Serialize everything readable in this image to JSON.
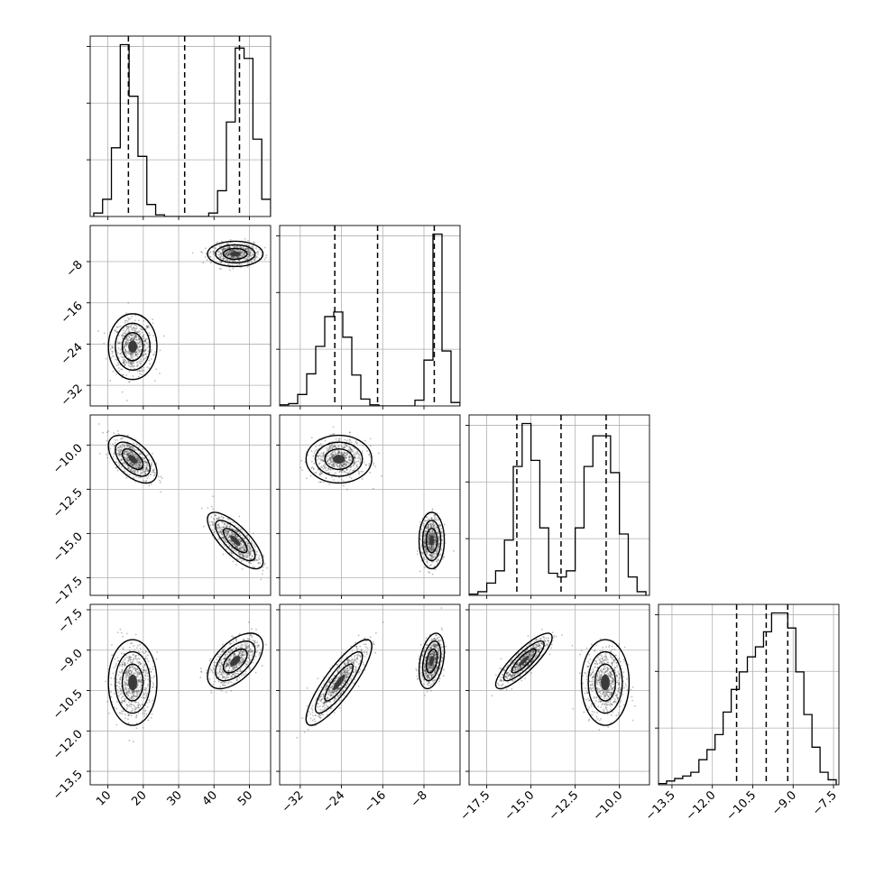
{
  "chart_data": {
    "type": "corner",
    "grid_lines": true,
    "params": [
      {
        "ticks": [
          10,
          20,
          30,
          40,
          50
        ],
        "tick_labels": [
          "10",
          "20",
          "30",
          "40",
          "50"
        ],
        "range": [
          5,
          56
        ],
        "quantiles": [
          15.8,
          31.7,
          47.2
        ],
        "hist": {
          "edges": [
            6,
            8.5,
            11,
            13.5,
            16,
            18.5,
            21,
            23.5,
            26,
            28.5,
            31,
            33.5,
            36,
            38.5,
            41,
            43.5,
            46,
            48.5,
            51,
            53.5,
            56
          ],
          "counts": [
            2,
            10,
            40,
            100,
            70,
            35,
            7,
            1,
            0,
            0,
            0,
            0,
            0,
            2,
            15,
            55,
            98,
            92,
            45,
            10
          ]
        }
      },
      {
        "ticks": [
          -32,
          -24,
          -16,
          -8
        ],
        "tick_labels": [
          "−32",
          "−24",
          "−16",
          "−8"
        ],
        "range": [
          -36,
          -1
        ],
        "quantiles": [
          -25.3,
          -17.0,
          -6.0
        ],
        "hist": {
          "edges": [
            -36,
            -34.25,
            -32.5,
            -30.75,
            -29,
            -27.25,
            -25.5,
            -23.75,
            -22,
            -20.25,
            -18.5,
            -16.75,
            -15,
            -13.25,
            -11.5,
            -9.75,
            -8,
            -6.25,
            -4.5,
            -2.75,
            -1
          ],
          "counts": [
            1,
            2,
            10,
            28,
            52,
            78,
            82,
            60,
            27,
            6,
            1,
            0,
            0,
            0,
            0,
            5,
            40,
            150,
            48,
            3
          ]
        }
      },
      {
        "ticks": [
          -17.5,
          -15.0,
          -12.5,
          -10.0
        ],
        "tick_labels": [
          "−17.5",
          "−15.0",
          "−12.5",
          "−10.0"
        ],
        "range": [
          -18.5,
          -8.3
        ],
        "quantiles": [
          -15.8,
          -13.3,
          -10.75
        ],
        "hist": {
          "edges": [
            -18.5,
            -18.0,
            -17.5,
            -17.0,
            -16.5,
            -16.0,
            -15.5,
            -15.0,
            -14.5,
            -14.0,
            -13.5,
            -13.0,
            -12.5,
            -12.0,
            -11.5,
            -11.0,
            -10.5,
            -10.0,
            -9.5,
            -9.0,
            -8.5
          ],
          "counts": [
            1,
            3,
            10,
            20,
            45,
            105,
            140,
            110,
            55,
            18,
            15,
            20,
            55,
            105,
            130,
            130,
            100,
            50,
            15,
            3
          ]
        }
      },
      {
        "ticks": [
          -13.5,
          -12.0,
          -10.5,
          -9.0,
          -7.5
        ],
        "tick_labels": [
          "−13.5",
          "−12.0",
          "−10.5",
          "−9.0",
          "−7.5"
        ],
        "range": [
          -14,
          -7.3
        ],
        "quantiles": [
          -11.1,
          -10.0,
          -9.2
        ],
        "hist": {
          "edges": [
            -14.0,
            -13.7,
            -13.4,
            -13.1,
            -12.8,
            -12.5,
            -12.2,
            -11.9,
            -11.6,
            -11.3,
            -11.0,
            -10.7,
            -10.4,
            -10.1,
            -9.8,
            -9.5,
            -9.2,
            -8.9,
            -8.6,
            -8.3,
            -8.0,
            -7.7,
            -7.4
          ],
          "counts": [
            1,
            3,
            5,
            7,
            10,
            20,
            28,
            40,
            58,
            76,
            90,
            102,
            110,
            122,
            137,
            137,
            125,
            90,
            56,
            30,
            10,
            4
          ]
        }
      }
    ],
    "y_tick_sets": {
      "1": {
        "ticks": [
          -32,
          -24,
          -16,
          -8
        ],
        "labels": [
          "−32",
          "−24",
          "−16",
          "−8"
        ]
      },
      "2": {
        "ticks": [
          -17.5,
          -15.0,
          -12.5,
          -10.0
        ],
        "labels": [
          "−17.5",
          "−15.0",
          "−12.5",
          "−10.0"
        ]
      },
      "3": {
        "ticks": [
          -13.5,
          -12.0,
          -10.5,
          -9.0,
          -7.5
        ],
        "labels": [
          "−13.5",
          "−12.0",
          "−10.5",
          "−9.0",
          "−7.5"
        ]
      }
    },
    "modes": [
      [
        17,
        -24.5,
        -10.8,
        -10.2
      ],
      [
        46,
        -6.5,
        -15.4,
        -9.4
      ]
    ],
    "mode_spread": [
      [
        2.8,
        2.6,
        0.55,
        0.65
      ],
      [
        3.2,
        1.0,
        0.65,
        0.42
      ]
    ],
    "mode_corr": [
      {
        "0-1": 0.0,
        "0-2": -0.55,
        "0-3": 0.0,
        "1-2": 0.0,
        "1-3": 0.85,
        "2-3": 0.0
      },
      {
        "0-1": 0.0,
        "0-2": -0.75,
        "0-3": 0.55,
        "1-2": 0.0,
        "1-3": 0.35,
        "2-3": 0.85
      }
    ],
    "colors": {
      "marks": "#000000",
      "grid": "#b0b0b0",
      "scatter": "#444444"
    }
  }
}
